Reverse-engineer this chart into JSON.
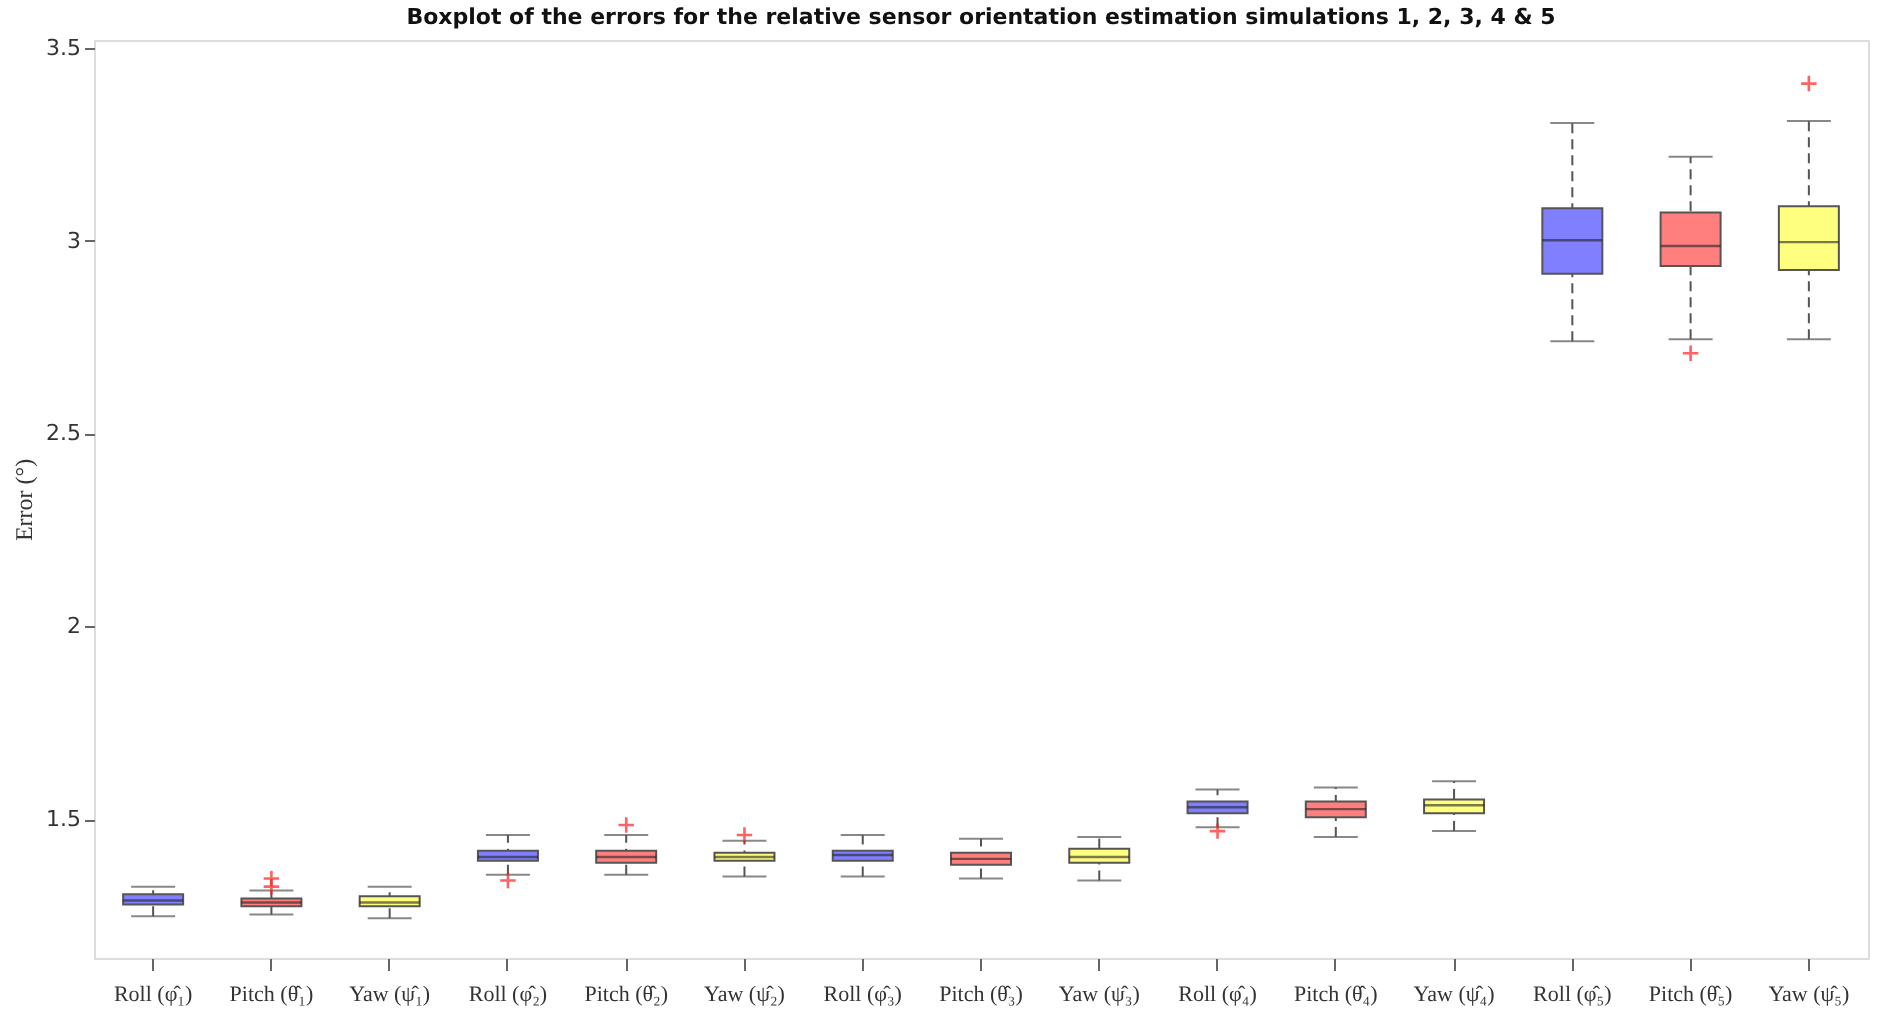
{
  "chart_data": {
    "type": "box",
    "title": "Boxplot of the errors for the relative sensor orientation estimation simulations 1, 2, 3, 4 & 5",
    "ylabel": "Error (°)",
    "categories": [
      "Roll (φ̂₁)",
      "Pitch (θ̂₁)",
      "Yaw (ψ̂₁)",
      "Roll (φ̂₂)",
      "Pitch (θ̂₂)",
      "Yaw (ψ̂₂)",
      "Roll (φ̂₃)",
      "Pitch (θ̂₃)",
      "Yaw (ψ̂₃)",
      "Roll (φ̂₄)",
      "Pitch (θ̂₄)",
      "Yaw (ψ̂₄)",
      "Roll (φ̂₅)",
      "Pitch (θ̂₅)",
      "Yaw (ψ̂₅)"
    ],
    "colors": [
      "#7f7fff",
      "#ff7f7f",
      "#ffff7f",
      "#7f7fff",
      "#ff7f7f",
      "#ffff7f",
      "#7f7fff",
      "#ff7f7f",
      "#ffff7f",
      "#7f7fff",
      "#ff7f7f",
      "#ffff7f",
      "#7f7fff",
      "#ff7f7f",
      "#ffff7f"
    ],
    "boxes": [
      {
        "low": 1.248,
        "q1": 1.279,
        "median": 1.289,
        "q3": 1.305,
        "high": 1.325
      },
      {
        "low": 1.253,
        "q1": 1.274,
        "median": 1.284,
        "q3": 1.294,
        "high": 1.315,
        "outliers": [
          1.346,
          1.325
        ]
      },
      {
        "low": 1.243,
        "q1": 1.274,
        "median": 1.284,
        "q3": 1.3,
        "high": 1.325
      },
      {
        "low": 1.356,
        "q1": 1.392,
        "median": 1.402,
        "q3": 1.418,
        "high": 1.459,
        "outliers": [
          1.341
        ]
      },
      {
        "low": 1.356,
        "q1": 1.387,
        "median": 1.402,
        "q3": 1.418,
        "high": 1.459,
        "outliers": [
          1.485
        ]
      },
      {
        "low": 1.351,
        "q1": 1.392,
        "median": 1.402,
        "q3": 1.413,
        "high": 1.444,
        "outliers": [
          1.459
        ]
      },
      {
        "low": 1.351,
        "q1": 1.392,
        "median": 1.407,
        "q3": 1.418,
        "high": 1.459
      },
      {
        "low": 1.346,
        "q1": 1.382,
        "median": 1.397,
        "q3": 1.413,
        "high": 1.449
      },
      {
        "low": 1.341,
        "q1": 1.387,
        "median": 1.402,
        "q3": 1.423,
        "high": 1.454
      },
      {
        "low": 1.479,
        "q1": 1.515,
        "median": 1.531,
        "q3": 1.546,
        "high": 1.577,
        "outliers": [
          1.469
        ]
      },
      {
        "low": 1.454,
        "q1": 1.505,
        "median": 1.526,
        "q3": 1.546,
        "high": 1.582
      },
      {
        "low": 1.469,
        "q1": 1.515,
        "median": 1.536,
        "q3": 1.551,
        "high": 1.598
      },
      {
        "low": 2.739,
        "q1": 2.914,
        "median": 3.001,
        "q3": 3.084,
        "high": 3.305
      },
      {
        "low": 2.744,
        "q1": 2.934,
        "median": 2.986,
        "q3": 3.073,
        "high": 3.217,
        "outliers": [
          2.708
        ]
      },
      {
        "low": 2.744,
        "q1": 2.924,
        "median": 2.996,
        "q3": 3.089,
        "high": 3.31,
        "outliers": [
          3.407
        ]
      }
    ],
    "ylim": [
      1.14,
      3.52
    ],
    "yticks": [
      1.5,
      2,
      2.5,
      3,
      3.5
    ],
    "grid": false
  }
}
